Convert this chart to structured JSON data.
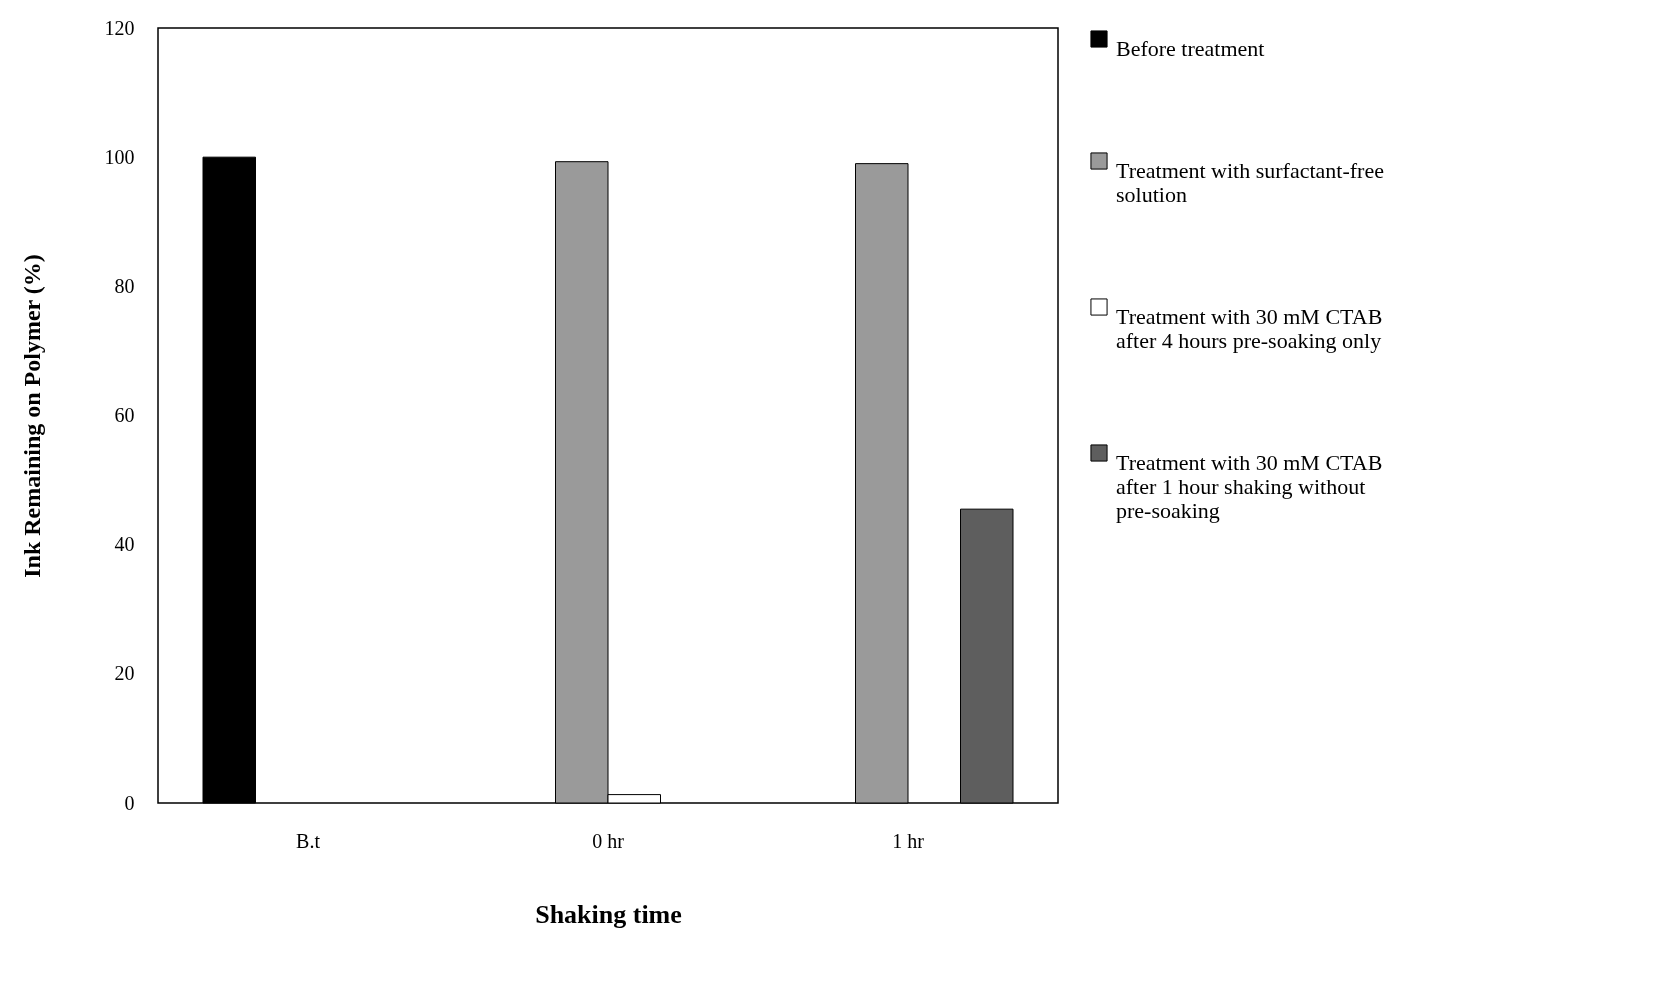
{
  "chart_data": {
    "type": "bar",
    "xlabel": "Shaking time",
    "ylabel": "Ink Remaining on Polymer (%)",
    "categories": [
      "B.t",
      "0 hr",
      "1 hr"
    ],
    "series": [
      {
        "name": "Before treatment",
        "color": "#000000",
        "values": [
          100,
          null,
          null
        ]
      },
      {
        "name": "Treatment with surfactant-free solution",
        "color": "#9a9a9a",
        "values": [
          null,
          99.3,
          99
        ]
      },
      {
        "name": "Treatment with 30 mM CTAB after 4 hours pre-soaking only",
        "color": "#ffffff",
        "values": [
          null,
          1.3,
          null
        ]
      },
      {
        "name": "Treatment with 30 mM CTAB after 1 hour shaking without pre-soaking",
        "color": "#5e5e5e",
        "values": [
          null,
          null,
          45.5
        ]
      }
    ],
    "ylim": [
      0,
      120
    ],
    "yticks": [
      0,
      20,
      40,
      60,
      80,
      100,
      120
    ],
    "grid": false,
    "legend": "right"
  }
}
